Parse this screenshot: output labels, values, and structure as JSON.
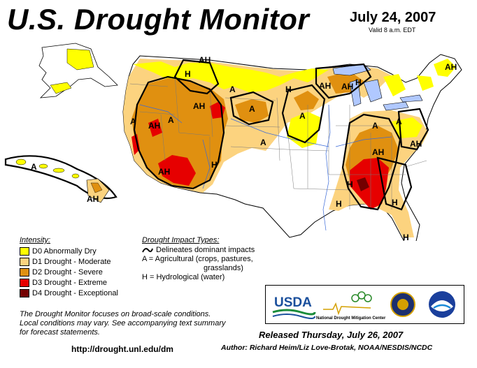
{
  "header": {
    "title": "U.S. Drought Monitor",
    "date": "July 24, 2007",
    "valid": "Valid 8 a.m. EDT"
  },
  "legend": {
    "title": "Intensity:",
    "items": [
      {
        "label": "D0 Abnormally Dry",
        "color": "#ffff00"
      },
      {
        "label": "D1 Drought - Moderate",
        "color": "#fcd37f"
      },
      {
        "label": "D2 Drought - Severe",
        "color": "#e09010"
      },
      {
        "label": "D3 Drought - Extreme",
        "color": "#e60000"
      },
      {
        "label": "D4 Drought - Exceptional",
        "color": "#730000"
      }
    ]
  },
  "impact": {
    "title": "Drought Impact Types:",
    "line1": "Delineates dominant impacts",
    "line2": "A = Agricultural (crops, pastures,",
    "line3": "grasslands)",
    "line4": "H = Hydrological (water)"
  },
  "map_labels": [
    "A",
    "AH",
    "H",
    "AH",
    "A",
    "AH",
    "A",
    "AH",
    "A",
    "A",
    "H",
    "AH",
    "A",
    "H",
    "A",
    "AH",
    "AH",
    "H",
    "AH",
    "H",
    "H",
    "H",
    "H",
    "A",
    "AH",
    "A",
    "AH",
    "H"
  ],
  "footer": {
    "note_line1": "The Drought Monitor focuses on broad-scale conditions.",
    "note_line2": "Local conditions may vary.  See accompanying text summary",
    "note_line3": "for forecast statements.",
    "url": "http://drought.unl.edu/dm",
    "released": "Released Thursday, July 26, 2007",
    "author": "Author:  Richard Heim/Liz Love-Brotak, NOAA/NESDIS/NCDC"
  },
  "logos": {
    "usda": "USDA",
    "ndmc": "National Drought Mitigation Center"
  }
}
